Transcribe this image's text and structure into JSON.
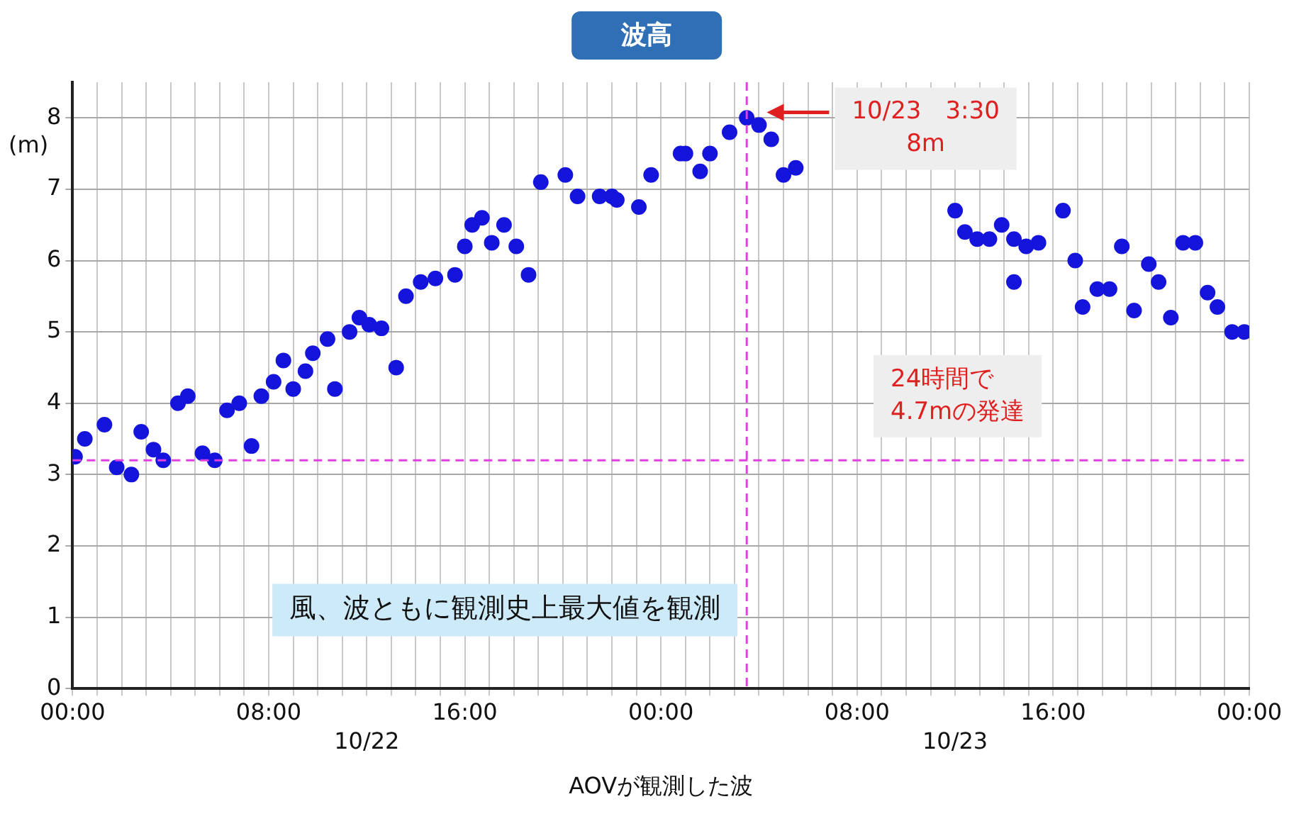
{
  "chart_data": {
    "type": "scatter",
    "title": "波高",
    "xlabel": "AOVが観測した波",
    "ylabel": "(m)",
    "x": [
      "--10-22T00:06",
      "--10-22T00:30",
      "--10-22T01:18",
      "--10-22T01:48",
      "--10-22T02:24",
      "--10-22T02:48",
      "--10-22T03:18",
      "--10-22T03:42",
      "--10-22T04:18",
      "--10-22T04:42",
      "--10-22T05:18",
      "--10-22T05:48",
      "--10-22T06:18",
      "--10-22T06:48",
      "--10-22T07:18",
      "--10-22T07:42",
      "--10-22T08:12",
      "--10-22T08:36",
      "--10-22T09:00",
      "--10-22T09:30",
      "--10-22T09:48",
      "--10-22T10:24",
      "--10-22T10:42",
      "--10-22T11:18",
      "--10-22T11:42",
      "--10-22T12:06",
      "--10-22T12:36",
      "--10-22T13:12",
      "--10-22T13:36",
      "--10-22T14:12",
      "--10-22T14:48",
      "--10-22T15:36",
      "--10-22T16:00",
      "--10-22T16:18",
      "--10-22T16:42",
      "--10-22T17:06",
      "--10-22T17:36",
      "--10-22T18:06",
      "--10-22T18:36",
      "--10-22T19:06",
      "--10-22T20:06",
      "--10-22T20:36",
      "--10-22T21:30",
      "--10-22T22:00",
      "--10-22T22:12",
      "--10-22T23:06",
      "--10-22T23:36",
      "--10-23T00:48",
      "--10-23T01:00",
      "--10-23T01:36",
      "--10-23T02:00",
      "--10-23T02:48",
      "--10-23T03:30",
      "--10-23T04:00",
      "--10-23T04:30",
      "--10-23T05:00",
      "--10-23T05:30",
      "--10-23T12:00",
      "--10-23T12:24",
      "--10-23T12:54",
      "--10-23T13:24",
      "--10-23T13:54",
      "--10-23T14:24",
      "--10-23T14:24",
      "--10-23T14:54",
      "--10-23T15:24",
      "--10-23T16:24",
      "--10-23T16:54",
      "--10-23T17:12",
      "--10-23T17:48",
      "--10-23T18:18",
      "--10-23T18:48",
      "--10-23T19:18",
      "--10-23T19:54",
      "--10-23T20:18",
      "--10-23T20:48",
      "--10-23T21:18",
      "--10-23T21:48",
      "--10-23T22:18",
      "--10-23T22:42",
      "--10-23T23:18",
      "--10-23T23:48"
    ],
    "series": [
      {
        "color": "#1414dc",
        "values": [
          3.25,
          3.5,
          3.7,
          3.1,
          3.0,
          3.6,
          3.35,
          3.2,
          4.0,
          4.1,
          3.3,
          3.2,
          3.9,
          4.0,
          3.4,
          4.1,
          4.3,
          4.6,
          4.2,
          4.45,
          4.7,
          4.9,
          4.2,
          5.0,
          5.2,
          5.1,
          5.05,
          4.5,
          5.5,
          5.7,
          5.75,
          5.8,
          6.2,
          6.5,
          6.6,
          6.25,
          6.5,
          6.2,
          5.8,
          7.1,
          7.2,
          6.9,
          6.9,
          6.9,
          6.85,
          6.75,
          7.2,
          7.5,
          7.5,
          7.25,
          7.5,
          7.8,
          8.0,
          7.9,
          7.7,
          7.2,
          7.3,
          6.7,
          6.4,
          6.3,
          6.3,
          6.5,
          6.3,
          5.7,
          6.2,
          6.25,
          6.7,
          6.0,
          5.35,
          5.6,
          5.6,
          6.2,
          5.3,
          5.95,
          5.7,
          5.2,
          6.25,
          6.25,
          5.55,
          5.35,
          5.0,
          5.0
        ]
      }
    ],
    "xlim": [
      "--10-22T00:00",
      "--10-24T00:00"
    ],
    "xticks": [
      {
        "value": "--10-22T00:00",
        "label": "00:00"
      },
      {
        "value": "--10-22T01:00",
        "label": null
      },
      {
        "value": "--10-22T02:00",
        "label": null
      },
      {
        "value": "--10-22T03:00",
        "label": null
      },
      {
        "value": "--10-22T04:00",
        "label": null
      },
      {
        "value": "--10-22T05:00",
        "label": null
      },
      {
        "value": "--10-22T06:00",
        "label": null
      },
      {
        "value": "--10-22T07:00",
        "label": null
      },
      {
        "value": "--10-22T08:00",
        "label": "08:00"
      },
      {
        "value": "--10-22T09:00",
        "label": null
      },
      {
        "value": "--10-22T10:00",
        "label": null
      },
      {
        "value": "--10-22T11:00",
        "label": null
      },
      {
        "value": "--10-22T12:00",
        "label": null
      },
      {
        "value": "--10-22T13:00",
        "label": null
      },
      {
        "value": "--10-22T14:00",
        "label": null
      },
      {
        "value": "--10-22T15:00",
        "label": null
      },
      {
        "value": "--10-22T16:00",
        "label": "16:00"
      },
      {
        "value": "--10-22T17:00",
        "label": null
      },
      {
        "value": "--10-22T18:00",
        "label": null
      },
      {
        "value": "--10-22T19:00",
        "label": null
      },
      {
        "value": "--10-22T20:00",
        "label": null
      },
      {
        "value": "--10-22T21:00",
        "label": null
      },
      {
        "value": "--10-22T22:00",
        "label": null
      },
      {
        "value": "--10-22T23:00",
        "label": null
      },
      {
        "value": "--10-23T00:00",
        "label": "00:00"
      },
      {
        "value": "--10-23T01:00",
        "label": null
      },
      {
        "value": "--10-23T02:00",
        "label": null
      },
      {
        "value": "--10-23T03:00",
        "label": null
      },
      {
        "value": "--10-23T04:00",
        "label": null
      },
      {
        "value": "--10-23T05:00",
        "label": null
      },
      {
        "value": "--10-23T06:00",
        "label": null
      },
      {
        "value": "--10-23T07:00",
        "label": null
      },
      {
        "value": "--10-23T08:00",
        "label": "08:00"
      },
      {
        "value": "--10-23T09:00",
        "label": null
      },
      {
        "value": "--10-23T10:00",
        "label": null
      },
      {
        "value": "--10-23T11:00",
        "label": null
      },
      {
        "value": "--10-23T12:00",
        "label": null
      },
      {
        "value": "--10-23T13:00",
        "label": null
      },
      {
        "value": "--10-23T14:00",
        "label": null
      },
      {
        "value": "--10-23T15:00",
        "label": null
      },
      {
        "value": "--10-23T16:00",
        "label": "16:00"
      },
      {
        "value": "--10-23T17:00",
        "label": null
      },
      {
        "value": "--10-23T18:00",
        "label": null
      },
      {
        "value": "--10-23T19:00",
        "label": null
      },
      {
        "value": "--10-23T20:00",
        "label": null
      },
      {
        "value": "--10-23T21:00",
        "label": null
      },
      {
        "value": "--10-23T22:00",
        "label": null
      },
      {
        "value": "--10-23T23:00",
        "label": null
      },
      {
        "value": "--10-24T00:00",
        "label": "00:00"
      }
    ],
    "ylim": [
      0,
      8.5
    ],
    "yticks": [
      0,
      1,
      2,
      3,
      4,
      5,
      6,
      7,
      8
    ],
    "grid": true,
    "marker": "circle",
    "ref_lines": [
      {
        "axis": "y",
        "value": 3.2,
        "color": "#e040e0",
        "line_style": "dashed"
      },
      {
        "axis": "x",
        "value": "--10-23T03:30",
        "color": "#e040e0",
        "line_style": "dashed"
      }
    ],
    "annotations": [
      "10/23　3:30\n8m",
      "24時間で\n4.7mの発達",
      "風、波ともに観測史上最大値を観測",
      "10/22",
      "10/23"
    ]
  }
}
